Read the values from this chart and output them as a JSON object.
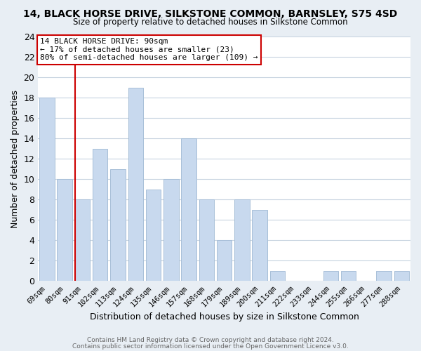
{
  "title": "14, BLACK HORSE DRIVE, SILKSTONE COMMON, BARNSLEY, S75 4SD",
  "subtitle": "Size of property relative to detached houses in Silkstone Common",
  "xlabel": "Distribution of detached houses by size in Silkstone Common",
  "ylabel": "Number of detached properties",
  "footer_line1": "Contains HM Land Registry data © Crown copyright and database right 2024.",
  "footer_line2": "Contains public sector information licensed under the Open Government Licence v3.0.",
  "bin_labels": [
    "69sqm",
    "80sqm",
    "91sqm",
    "102sqm",
    "113sqm",
    "124sqm",
    "135sqm",
    "146sqm",
    "157sqm",
    "168sqm",
    "179sqm",
    "189sqm",
    "200sqm",
    "211sqm",
    "222sqm",
    "233sqm",
    "244sqm",
    "255sqm",
    "266sqm",
    "277sqm",
    "288sqm"
  ],
  "bar_heights": [
    18,
    10,
    8,
    13,
    11,
    19,
    9,
    10,
    14,
    8,
    4,
    8,
    7,
    1,
    0,
    0,
    1,
    1,
    0,
    1,
    1
  ],
  "bar_color": "#c8d9ee",
  "bar_edge_color": "#a8bfd8",
  "reference_bar_index": 2,
  "reference_line_color": "#cc0000",
  "annotation_title": "14 BLACK HORSE DRIVE: 90sqm",
  "annotation_line1": "← 17% of detached houses are smaller (23)",
  "annotation_line2": "80% of semi-detached houses are larger (109) →",
  "annotation_box_edge": "#cc0000",
  "ylim": [
    0,
    24
  ],
  "yticks": [
    0,
    2,
    4,
    6,
    8,
    10,
    12,
    14,
    16,
    18,
    20,
    22,
    24
  ],
  "grid_color": "#c8d4e0",
  "figure_bg_color": "#e8eef4",
  "axes_bg_color": "#ffffff"
}
